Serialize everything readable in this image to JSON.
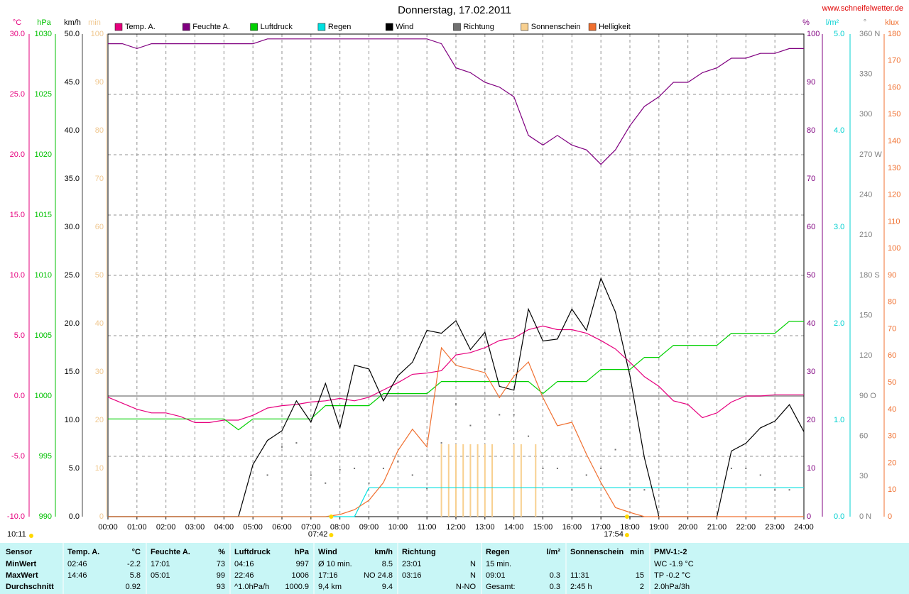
{
  "chart_data": {
    "type": "line",
    "title": "Donnerstag, 17.02.2011",
    "website": "www.schneifelwetter.de",
    "grid": true,
    "xlim": [
      "00:00",
      "24:00"
    ],
    "xticks": [
      "00:00",
      "01:00",
      "02:00",
      "03:00",
      "04:00",
      "05:00",
      "06:00",
      "07:00",
      "08:00",
      "09:00",
      "10:00",
      "11:00",
      "12:00",
      "13:00",
      "14:00",
      "15:00",
      "16:00",
      "17:00",
      "18:00",
      "19:00",
      "20:00",
      "21:00",
      "22:00",
      "23:00",
      "24:00"
    ],
    "x": [
      "00:00",
      "00:30",
      "01:00",
      "01:30",
      "02:00",
      "02:30",
      "03:00",
      "03:30",
      "04:00",
      "04:30",
      "05:00",
      "05:30",
      "06:00",
      "06:30",
      "07:00",
      "07:30",
      "08:00",
      "08:30",
      "09:00",
      "09:30",
      "10:00",
      "10:30",
      "11:00",
      "11:30",
      "12:00",
      "12:30",
      "13:00",
      "13:30",
      "14:00",
      "14:30",
      "15:00",
      "15:30",
      "16:00",
      "16:30",
      "17:00",
      "17:30",
      "18:00",
      "18:30",
      "19:00",
      "19:30",
      "20:00",
      "20:30",
      "21:00",
      "21:30",
      "22:00",
      "22:30",
      "23:00",
      "23:30",
      "24:00"
    ],
    "axes": [
      {
        "label": "°C",
        "color": "#e6007e",
        "lim": [
          -10,
          30
        ],
        "ticks": [
          {
            "value": 30,
            "label": "30.0"
          },
          {
            "value": 25,
            "label": "25.0"
          },
          {
            "value": 20,
            "label": "20.0"
          },
          {
            "value": 15,
            "label": "15.0"
          },
          {
            "value": 10,
            "label": "10.0"
          },
          {
            "value": 5,
            "label": "5.0"
          },
          {
            "value": 0,
            "label": "0.0"
          },
          {
            "value": -5,
            "label": "-5.0"
          },
          {
            "value": -10,
            "label": "-10.0"
          }
        ]
      },
      {
        "label": "hPa",
        "color": "#00c000",
        "lim": [
          990,
          1030
        ],
        "ticks": [
          1030,
          1025,
          1020,
          1015,
          1010,
          1005,
          1000,
          995,
          990
        ]
      },
      {
        "label": "km/h",
        "color": "#000000",
        "lim": [
          0,
          50
        ],
        "ticks": [
          {
            "value": 50,
            "label": "50.0"
          },
          {
            "value": 45,
            "label": "45.0"
          },
          {
            "value": 40,
            "label": "40.0"
          },
          {
            "value": 35,
            "label": "35.0"
          },
          {
            "value": 30,
            "label": "30.0"
          },
          {
            "value": 25,
            "label": "25.0"
          },
          {
            "value": 20,
            "label": "20.0"
          },
          {
            "value": 15,
            "label": "15.0"
          },
          {
            "value": 10,
            "label": "10.0"
          },
          {
            "value": 5,
            "label": "5.0"
          },
          {
            "value": 0,
            "label": "0.0"
          }
        ]
      },
      {
        "label": "min",
        "color": "#f0c890",
        "lim": [
          0,
          100
        ],
        "ticks": [
          100,
          90,
          80,
          70,
          60,
          50,
          40,
          30,
          20,
          10,
          0
        ]
      },
      {
        "label": "%",
        "color": "#800080",
        "lim": [
          0,
          100
        ],
        "ticks": [
          100,
          90,
          80,
          70,
          60,
          50,
          40,
          30,
          20,
          10,
          0
        ]
      },
      {
        "label": "l/m²",
        "color": "#00d0d0",
        "lim": [
          0,
          5
        ],
        "ticks": [
          {
            "value": 5,
            "label": "5.0"
          },
          {
            "value": 4,
            "label": "4.0"
          },
          {
            "value": 3,
            "label": "3.0"
          },
          {
            "value": 2,
            "label": "2.0"
          },
          {
            "value": 1,
            "label": "1.0"
          },
          {
            "value": 0,
            "label": "0.0"
          }
        ]
      },
      {
        "label": "°",
        "color": "#808080",
        "lim": [
          0,
          360
        ],
        "ticks": [
          {
            "value": 360,
            "label": "360 N"
          },
          330,
          300,
          {
            "value": 270,
            "label": "270 W"
          },
          240,
          210,
          {
            "value": 180,
            "label": "180 S"
          },
          150,
          120,
          {
            "value": 90,
            "label": "90 O"
          },
          60,
          30,
          {
            "value": 0,
            "label": "0 N"
          }
        ]
      },
      {
        "label": "klux",
        "color": "#f07030",
        "lim": [
          0,
          180
        ],
        "ticks": [
          180,
          170,
          160,
          150,
          140,
          130,
          120,
          110,
          100,
          90,
          80,
          70,
          60,
          50,
          40,
          30,
          20,
          10,
          0
        ]
      }
    ],
    "series": [
      {
        "name": "Temp. A.",
        "color": "#e6007e",
        "axis": "°C",
        "style": "line",
        "values": [
          -0.1,
          -0.6,
          -1.1,
          -1.4,
          -1.4,
          -1.7,
          -2.2,
          -2.2,
          -2.0,
          -2.0,
          -1.6,
          -1.0,
          -0.8,
          -0.7,
          -0.5,
          -0.4,
          -0.2,
          -0.4,
          -0.1,
          0.5,
          1.1,
          1.8,
          1.9,
          2.1,
          3.4,
          3.6,
          4.0,
          4.6,
          4.8,
          5.5,
          5.8,
          5.5,
          5.5,
          5.2,
          4.6,
          3.9,
          2.8,
          1.6,
          0.8,
          -0.4,
          -0.7,
          -1.8,
          -1.4,
          -0.5,
          0.0,
          0.0,
          0.1,
          0.1,
          0.1
        ]
      },
      {
        "name": "Feuchte A.",
        "color": "#800080",
        "axis": "%",
        "style": "line",
        "values": [
          98,
          98,
          97,
          98,
          98,
          98,
          98,
          98,
          98,
          98,
          98,
          99,
          99,
          99,
          99,
          99,
          99,
          99,
          99,
          99,
          99,
          99,
          99,
          98,
          93,
          92,
          90,
          89,
          87,
          79,
          77,
          79,
          77,
          76,
          73,
          76,
          81,
          85,
          87,
          90,
          90,
          92,
          93,
          95,
          95,
          96,
          96,
          97,
          97
        ]
      },
      {
        "name": "Luftdruck",
        "color": "#00d000",
        "axis": "hPa",
        "style": "line",
        "values": [
          998.1,
          998.1,
          998.1,
          998.1,
          998.1,
          998.1,
          998.1,
          998.1,
          998.1,
          997.2,
          998.1,
          998.1,
          998.1,
          998.1,
          998.1,
          999.2,
          999.2,
          999.2,
          999.2,
          1000.2,
          1000.2,
          1000.2,
          1000.2,
          1001.2,
          1001.2,
          1001.2,
          1001.2,
          1001.2,
          1001.2,
          1001.2,
          1000.2,
          1001.2,
          1001.2,
          1001.2,
          1002.2,
          1002.2,
          1002.2,
          1003.2,
          1003.2,
          1004.2,
          1004.2,
          1004.2,
          1004.2,
          1005.2,
          1005.2,
          1005.2,
          1005.2,
          1006.2,
          1006.2
        ]
      },
      {
        "name": "Regen",
        "color": "#00e0e0",
        "axis": "l/m²",
        "style": "line",
        "values": [
          0,
          0,
          0,
          0,
          0,
          0,
          0,
          0,
          0,
          0,
          0,
          0,
          0,
          0,
          0,
          0,
          0,
          0,
          0.3,
          0.3,
          0.3,
          0.3,
          0.3,
          0.3,
          0.3,
          0.3,
          0.3,
          0.3,
          0.3,
          0.3,
          0.3,
          0.3,
          0.3,
          0.3,
          0.3,
          0.3,
          0.3,
          0.3,
          0.3,
          0.3,
          0.3,
          0.3,
          0.3,
          0.3,
          0.3,
          0.3,
          0.3,
          0.3,
          0.3
        ]
      },
      {
        "name": "Wind",
        "color": "#000000",
        "axis": "km/h",
        "style": "line",
        "values": [
          0,
          0,
          0,
          0,
          0,
          0,
          0,
          0,
          0,
          0,
          5.4,
          7.9,
          8.9,
          12.0,
          9.8,
          13.8,
          9.2,
          15.7,
          15.3,
          12.0,
          14.6,
          16.0,
          19.3,
          19.0,
          20.3,
          17.3,
          19.1,
          13.5,
          13.1,
          21.5,
          18.2,
          18.4,
          21.5,
          19.3,
          24.7,
          21.2,
          14.6,
          6.1,
          0,
          0,
          0,
          0,
          0,
          6.8,
          7.6,
          9.2,
          9.9,
          11.6,
          8.8
        ]
      },
      {
        "name": "Richtung",
        "color": "#707070",
        "axis": "°",
        "style": "dot",
        "values": [
          null,
          null,
          null,
          null,
          null,
          null,
          null,
          null,
          null,
          null,
          null,
          31,
          52,
          55,
          31,
          25,
          35,
          36,
          25,
          36,
          41,
          31,
          21,
          55,
          84,
          68,
          110,
          76,
          76,
          60,
          36,
          36,
          20,
          31,
          36,
          50,
          20,
          20,
          null,
          null,
          null,
          null,
          null,
          36,
          36,
          31,
          20,
          20,
          null
        ]
      },
      {
        "name": "Sonnenschein",
        "color": "#f8d090",
        "axis": "min",
        "style": "bar",
        "x": [
          "11:30",
          "11:45",
          "12:00",
          "12:15",
          "12:30",
          "12:45",
          "13:00",
          "13:15",
          "14:00",
          "14:15",
          "14:45"
        ],
        "values": [
          15,
          15,
          15,
          15,
          15,
          15,
          15,
          15,
          15,
          15,
          15
        ]
      },
      {
        "name": "Helligkeit",
        "color": "#f07030",
        "axis": "klux",
        "style": "line",
        "values": [
          0,
          0,
          0,
          0,
          0,
          0,
          0,
          0,
          0,
          0,
          0,
          0,
          0,
          0,
          0,
          0,
          0.8,
          2.6,
          6.1,
          12.7,
          24.6,
          32.6,
          26.0,
          63.0,
          56.4,
          55.1,
          53.7,
          44.4,
          52.4,
          57.7,
          44.4,
          33.9,
          35.2,
          23.3,
          12.7,
          3.4,
          1.6,
          0,
          0,
          0,
          0,
          0,
          0,
          0,
          0,
          0,
          0,
          0,
          0
        ]
      }
    ],
    "annotations": {
      "sunrise": "07:42",
      "sunset": "17:54",
      "day_length": "10:11"
    }
  },
  "table": {
    "header": [
      [
        "Sensor",
        null
      ],
      [
        "Temp. A.",
        "°C"
      ],
      [
        "Feuchte A.",
        "%"
      ],
      [
        "Luftdruck",
        "hPa"
      ],
      [
        "Wind",
        "km/h"
      ],
      [
        "Richtung",
        null
      ],
      [
        "Regen",
        "l/m²"
      ],
      [
        "Sonnenschein",
        "min"
      ],
      [
        "PMV-1:-2",
        null
      ]
    ],
    "rows": [
      [
        [
          "MinWert",
          null
        ],
        [
          "02:46",
          "-2.2"
        ],
        [
          "17:01",
          "73"
        ],
        [
          "04:16",
          "997"
        ],
        [
          "Ø 10 min.",
          "8.5"
        ],
        [
          "23:01",
          "N"
        ],
        [
          "15 min.",
          null
        ],
        [
          null,
          null
        ],
        [
          "WC -1.9 °C",
          null
        ]
      ],
      [
        [
          "MaxWert",
          null
        ],
        [
          "14:46",
          "5.8"
        ],
        [
          "05:01",
          "99"
        ],
        [
          "22:46",
          "1006"
        ],
        [
          "17:16",
          "NO 24.8"
        ],
        [
          "03:16",
          "N"
        ],
        [
          "09:01",
          "0.3"
        ],
        [
          "11:31",
          "15"
        ],
        [
          "TP -0.2 °C",
          null
        ]
      ],
      [
        [
          "Durchschnitt",
          null
        ],
        [
          null,
          "0.92"
        ],
        [
          null,
          "93"
        ],
        [
          "^1.0hPa/h",
          "1000.9"
        ],
        [
          "9,4 km",
          "9.4"
        ],
        [
          null,
          "N-NO"
        ],
        [
          "Gesamt:",
          "0.3"
        ],
        [
          "2:45 h",
          "2"
        ],
        [
          "2.0hPa/3h",
          null
        ]
      ]
    ]
  }
}
